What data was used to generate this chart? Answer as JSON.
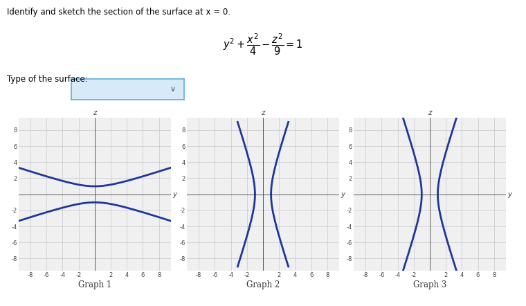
{
  "title_text": "Identify and sketch the section of the surface at x = 0.",
  "type_label": "Type of the surface:",
  "graph_labels": [
    "Graph 1",
    "Graph 2",
    "Graph 3"
  ],
  "curve_color": "#1e3799",
  "curve_linewidth": 2.0,
  "grid_color": "#c8c8c8",
  "fig_bg": "#ffffff",
  "plot_bg": "#f0f0f0",
  "graph1_note": "z = +-sqrt(y^2/9 + 1), horizontal hyperbola opening outward",
  "graph2_note": "z = +-3*sqrt(y^2-1), vertical hyperbola for |y|>=1, pinching at y=+-1",
  "graph3_note": "y = +-sqrt(1 + z^2/9), nearly vertical lines opening sideways",
  "xlim": [
    -9.5,
    9.5
  ],
  "ylim": [
    -9.5,
    9.5
  ],
  "ticks": [
    -8,
    -6,
    -4,
    -2,
    2,
    4,
    6,
    8
  ],
  "dropout_box_color": "#d6eaf8",
  "dropout_box_edge": "#5dade2"
}
